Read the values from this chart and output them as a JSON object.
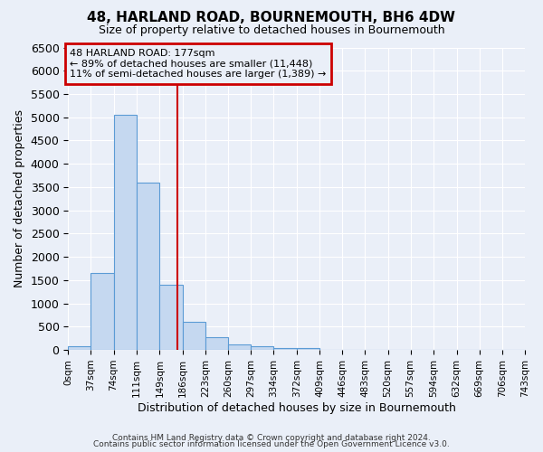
{
  "title": "48, HARLAND ROAD, BOURNEMOUTH, BH6 4DW",
  "subtitle": "Size of property relative to detached houses in Bournemouth",
  "xlabel": "Distribution of detached houses by size in Bournemouth",
  "ylabel": "Number of detached properties",
  "bar_color": "#c5d8f0",
  "bar_edge_color": "#5b9bd5",
  "background_color": "#eaeff8",
  "grid_color": "#ffffff",
  "vline_color": "#cc0000",
  "vline_x": 177,
  "annotation_line1": "48 HARLAND ROAD: 177sqm",
  "annotation_line2": "← 89% of detached houses are smaller (11,448)",
  "annotation_line3": "11% of semi-detached houses are larger (1,389) →",
  "bin_edges": [
    0,
    37,
    74,
    111,
    149,
    186,
    223,
    260,
    297,
    334,
    372,
    409,
    446,
    483,
    520,
    557,
    594,
    632,
    669,
    706,
    743
  ],
  "bar_heights": [
    75,
    1650,
    5050,
    3600,
    1400,
    600,
    275,
    125,
    75,
    50,
    50,
    0,
    0,
    0,
    0,
    0,
    0,
    0,
    0,
    0
  ],
  "ylim": [
    0,
    6500
  ],
  "yticks": [
    0,
    500,
    1000,
    1500,
    2000,
    2500,
    3000,
    3500,
    4000,
    4500,
    5000,
    5500,
    6000,
    6500
  ],
  "tick_labels": [
    "0sqm",
    "37sqm",
    "74sqm",
    "111sqm",
    "149sqm",
    "186sqm",
    "223sqm",
    "260sqm",
    "297sqm",
    "334sqm",
    "372sqm",
    "409sqm",
    "446sqm",
    "483sqm",
    "520sqm",
    "557sqm",
    "594sqm",
    "632sqm",
    "669sqm",
    "706sqm",
    "743sqm"
  ],
  "footer1": "Contains HM Land Registry data © Crown copyright and database right 2024.",
  "footer2": "Contains public sector information licensed under the Open Government Licence v3.0."
}
